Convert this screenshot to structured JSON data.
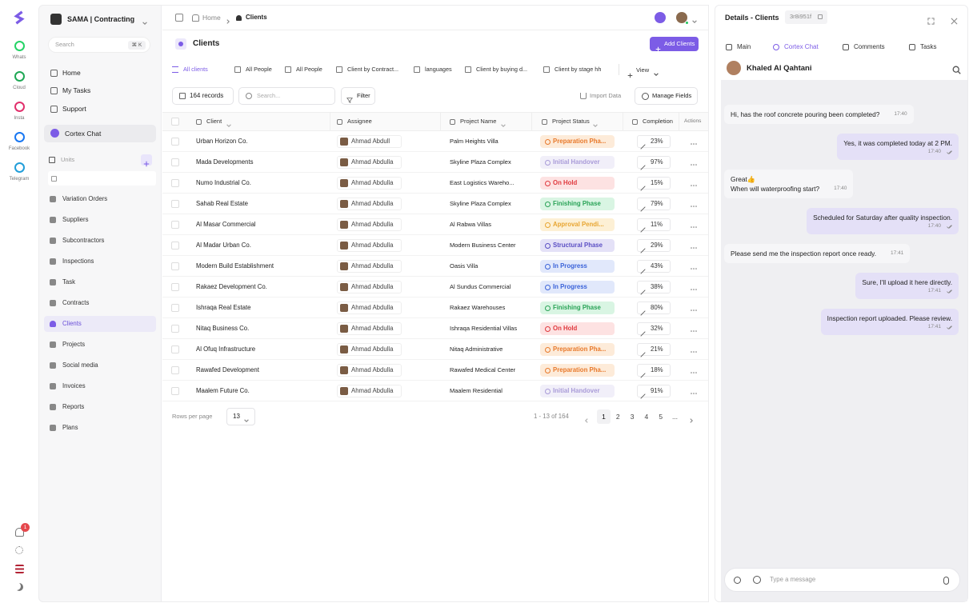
{
  "rail": {
    "apps": [
      "Whats",
      "Cloud",
      "Insta",
      "Facebook",
      "Telegram"
    ],
    "app_colors": [
      "#25d366",
      "#1fa855",
      "#e1306c",
      "#1877f2",
      "#229ed9"
    ],
    "notifications": "1"
  },
  "sidebar": {
    "workspace": "SAMA | Contracting",
    "search": "Search",
    "shortcut": "⌘ K",
    "top_items": [
      "Home",
      "My Tasks",
      "Support"
    ],
    "cortex": "Cortex Chat",
    "units": "Units",
    "items": [
      "Variation Orders",
      "Suppliers",
      "Subcontractors",
      "Inspections",
      "Task",
      "Contracts",
      "Clients",
      "Projects",
      "Social media",
      "Invoices",
      "Reports",
      "Plans"
    ],
    "selected": 6
  },
  "main": {
    "breadcrumb": [
      "Home",
      "Clients"
    ],
    "title": "Clients",
    "add_button": "Add Clients",
    "views": [
      "All clients",
      "All People",
      "All People",
      "Client by Contract...",
      "languages",
      "Client by buying d...",
      "Client by stage hh"
    ],
    "add_view": "View",
    "records": "164 records",
    "search": "Search...",
    "filter": "Filter",
    "import": "Import Data",
    "manage": "Manage Fields",
    "columns": [
      "Client",
      "Assignee",
      "Project Name",
      "Project Status",
      "Completion",
      "Actions"
    ],
    "rows": [
      {
        "client": "Urban Horizon Co.",
        "assignee": "Ahmad Abdull",
        "project": "Palm Heights Villa",
        "status": "Preparation Pha...",
        "status_color": "#e8792b",
        "status_bg": "#fdebd9",
        "completion": "23%"
      },
      {
        "client": "Mada Developments",
        "assignee": "Ahmad Abdulla",
        "project": "Skyline Plaza Complex",
        "status": "Initial Handover",
        "status_color": "#a99bd8",
        "status_bg": "#f1eff9",
        "completion": "97%"
      },
      {
        "client": "Numo Industrial Co.",
        "assignee": "Ahmad Abdulla",
        "project": "East Logistics Wareho...",
        "status": "On Hold",
        "status_color": "#e0393e",
        "status_bg": "#fde2e2",
        "completion": "15%"
      },
      {
        "client": "Sahab Real Estate",
        "assignee": "Ahmad Abdulla",
        "project": "Skyline Plaza Complex",
        "status": "Finishing Phase",
        "status_color": "#2aa357",
        "status_bg": "#d9f5e3",
        "completion": "79%"
      },
      {
        "client": "Al Masar Commercial",
        "assignee": "Ahmad Abdulla",
        "project": "Al Rabwa Villas",
        "status": "Approval Pendi...",
        "status_color": "#e8a531",
        "status_bg": "#fdf0d5",
        "completion": "11%"
      },
      {
        "client": "Al Madar Urban Co.",
        "assignee": "Ahmad Abdulla",
        "project": "Modern Business Center",
        "status": "Structural Phase",
        "status_color": "#5b4fc4",
        "status_bg": "#e4e1f7",
        "completion": "29%"
      },
      {
        "client": "Modern Build Establishment",
        "assignee": "Ahmad Abdulla",
        "project": "Oasis Villa",
        "status": "In Progress",
        "status_color": "#3b63d9",
        "status_bg": "#e1e8fb",
        "completion": "43%"
      },
      {
        "client": "Rakaez Development Co.",
        "assignee": "Ahmad Abdulla",
        "project": "Al Sundus Commercial",
        "status": "In Progress",
        "status_color": "#3b63d9",
        "status_bg": "#e1e8fb",
        "completion": "38%"
      },
      {
        "client": "Ishraqa Real Estate",
        "assignee": "Ahmad Abdulla",
        "project": "Rakaez Warehouses",
        "status": "Finishing Phase",
        "status_color": "#2aa357",
        "status_bg": "#d9f5e3",
        "completion": "80%"
      },
      {
        "client": "Nitaq Business Co.",
        "assignee": "Ahmad Abdulla",
        "project": "Ishraqa Residential Villas",
        "status": "On Hold",
        "status_color": "#e0393e",
        "status_bg": "#fde2e2",
        "completion": "32%"
      },
      {
        "client": "Al Ofuq Infrastructure",
        "assignee": "Ahmad Abdulla",
        "project": "Nitaq Administrative",
        "status": "Preparation Pha...",
        "status_color": "#e8792b",
        "status_bg": "#fdebd9",
        "completion": "21%"
      },
      {
        "client": "Rawafed Development",
        "assignee": "Ahmad Abdulla",
        "project": "Rawafed Medical Center",
        "status": "Preparation Pha...",
        "status_color": "#e8792b",
        "status_bg": "#fdebd9",
        "completion": "18%"
      },
      {
        "client": "Maalem Future Co.",
        "assignee": "Ahmad Abdulla",
        "project": "Maalem Residential",
        "status": "Initial Handover",
        "status_color": "#a99bd8",
        "status_bg": "#f1eff9",
        "completion": "91%"
      }
    ],
    "rows_per_page_label": "Rows per page",
    "rows_per_page": "13",
    "range": "1 - 13 of 164",
    "pages": [
      "1",
      "2",
      "3",
      "4",
      "5",
      "..."
    ]
  },
  "details": {
    "title": "Details - Clients",
    "id": "3r8i951f",
    "tabs": [
      "Main",
      "Cortex Chat",
      "Comments",
      "Tasks"
    ],
    "active_tab": 1,
    "contact": "Khaled Al Qahtani",
    "messages": [
      {
        "text": "Hi, has the roof concrete pouring been completed?",
        "time": "17:40",
        "outgoing": false
      },
      {
        "text": "Yes, it was completed today at 2 PM.",
        "time": "17:40",
        "outgoing": true
      },
      {
        "text": "Great👍\nWhen will waterproofing start?",
        "time": "17:40",
        "outgoing": false
      },
      {
        "text": "Scheduled for Saturday after quality inspection.",
        "time": "17:40",
        "outgoing": true
      },
      {
        "text": "Please send me the inspection report once ready.",
        "time": "17:41",
        "outgoing": false
      },
      {
        "text": "Sure, I'll upload it here directly.",
        "time": "17:41",
        "outgoing": true
      },
      {
        "text": "Inspection report uploaded. Please review.",
        "time": "17:41",
        "outgoing": true
      }
    ],
    "input": "Type a message"
  }
}
